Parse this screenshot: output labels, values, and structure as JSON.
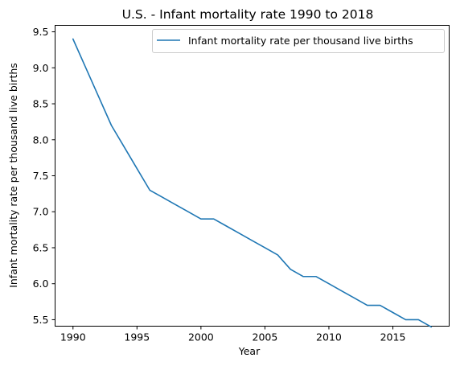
{
  "chart_data": {
    "type": "line",
    "title": "U.S. - Infant mortality rate 1990 to 2018",
    "xlabel": "Year",
    "ylabel": "Infant mortality rate per thousand live births",
    "x": [
      1990,
      1991,
      1992,
      1993,
      1994,
      1995,
      1996,
      1997,
      1998,
      1999,
      2000,
      2001,
      2002,
      2003,
      2004,
      2005,
      2006,
      2007,
      2008,
      2009,
      2010,
      2011,
      2012,
      2013,
      2014,
      2015,
      2016,
      2017,
      2018
    ],
    "series": [
      {
        "name": "Infant mortality rate per thousand live births",
        "color": "#1f77b4",
        "values": [
          9.4,
          9.0,
          8.6,
          8.2,
          7.9,
          7.6,
          7.3,
          7.2,
          7.1,
          7.0,
          6.9,
          6.9,
          6.8,
          6.7,
          6.6,
          6.5,
          6.4,
          6.2,
          6.1,
          6.1,
          6.0,
          5.9,
          5.8,
          5.7,
          5.7,
          5.6,
          5.5,
          5.5,
          5.4
        ]
      }
    ],
    "xticks": [
      "1990",
      "1995",
      "2000",
      "2005",
      "2010",
      "2015"
    ],
    "yticks": [
      "5.5",
      "6.0",
      "6.5",
      "7.0",
      "7.5",
      "8.0",
      "8.5",
      "9.0",
      "9.5"
    ],
    "xlim": [
      1988.6,
      2019.4
    ],
    "ylim": [
      5.41,
      9.59
    ],
    "grid": false,
    "legend_position": "top-right"
  }
}
